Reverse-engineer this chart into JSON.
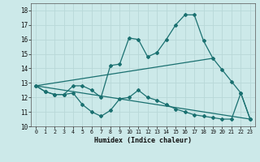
{
  "xlabel": "Humidex (Indice chaleur)",
  "background_color": "#cce9e9",
  "grid_color": "#b8d8d8",
  "line_color": "#1a7070",
  "xlim": [
    -0.5,
    23.5
  ],
  "ylim": [
    10,
    18.5
  ],
  "yticks": [
    10,
    11,
    12,
    13,
    14,
    15,
    16,
    17,
    18
  ],
  "xticks": [
    0,
    1,
    2,
    3,
    4,
    5,
    6,
    7,
    8,
    9,
    10,
    11,
    12,
    13,
    14,
    15,
    16,
    17,
    18,
    19,
    20,
    21,
    22,
    23
  ],
  "line1_x": [
    0,
    1,
    2,
    3,
    4,
    5,
    6,
    7,
    8,
    9,
    10,
    11,
    12,
    13,
    14,
    15,
    16,
    17,
    18,
    19,
    20,
    21,
    22,
    23
  ],
  "line1_y": [
    12.8,
    12.4,
    12.2,
    12.2,
    12.8,
    12.8,
    12.5,
    12.0,
    14.2,
    14.3,
    16.1,
    16.0,
    14.8,
    15.1,
    16.0,
    17.0,
    17.7,
    17.7,
    15.9,
    14.7,
    13.9,
    13.1,
    12.3,
    10.5
  ],
  "line2_x": [
    0,
    1,
    2,
    3,
    4,
    5,
    6,
    7,
    8,
    9,
    10,
    11,
    12,
    13,
    14,
    15,
    16,
    17,
    18,
    19,
    20,
    21,
    22,
    23
  ],
  "line2_y": [
    12.8,
    12.4,
    12.2,
    12.2,
    12.3,
    11.5,
    11.0,
    10.7,
    11.1,
    11.9,
    12.0,
    12.5,
    12.0,
    11.8,
    11.5,
    11.2,
    11.0,
    10.8,
    10.7,
    10.6,
    10.5,
    10.5,
    12.3,
    10.5
  ],
  "line3_x": [
    0,
    23
  ],
  "line3_y": [
    12.8,
    10.5
  ],
  "line4_x": [
    0,
    19
  ],
  "line4_y": [
    12.8,
    14.7
  ]
}
